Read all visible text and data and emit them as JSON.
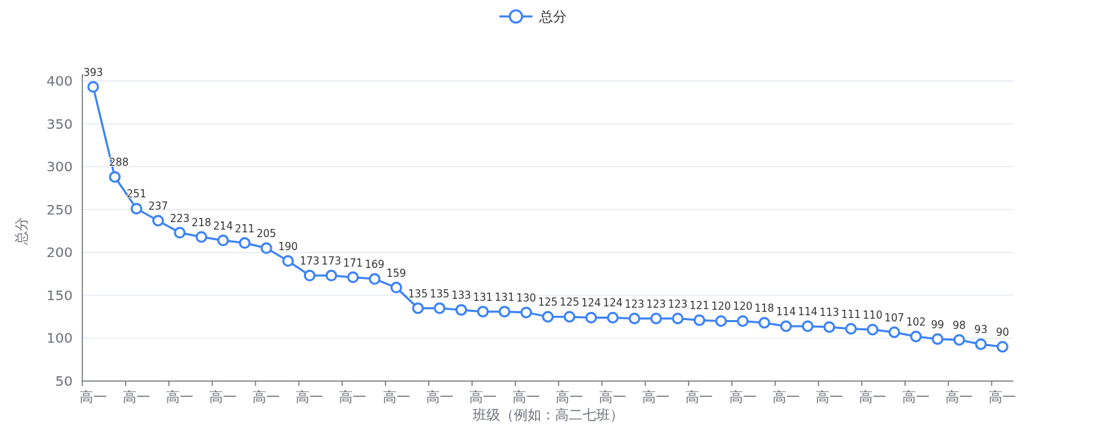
{
  "chart_data": {
    "type": "line",
    "xlabel": "班级（例如：高二七班）",
    "ylabel": "总分",
    "categories": [
      "高一",
      null,
      "高一",
      null,
      "高一",
      null,
      "高一",
      null,
      "高一",
      null,
      "高一",
      null,
      "高一",
      null,
      "高一",
      null,
      "高一",
      null,
      "高一",
      null,
      "高一",
      null,
      "高一",
      null,
      "高一",
      null,
      "高一",
      null,
      "高一",
      null,
      "高一",
      null,
      "高一",
      null,
      "高一",
      null,
      "高一",
      null,
      "高一",
      null,
      "高一",
      null,
      "高一"
    ],
    "series": [
      {
        "name": "总分",
        "color": "#3b82f6",
        "values": [
          393,
          288,
          251,
          237,
          223,
          218,
          214,
          211,
          205,
          190,
          173,
          173,
          171,
          169,
          159,
          135,
          135,
          133,
          131,
          131,
          130,
          125,
          125,
          124,
          124,
          123,
          123,
          123,
          121,
          120,
          120,
          118,
          114,
          114,
          113,
          111,
          110,
          107,
          102,
          99,
          98,
          93,
          90
        ]
      }
    ],
    "ylim": [
      50,
      400
    ],
    "yticks": [
      50,
      100,
      150,
      200,
      250,
      300,
      350,
      400
    ],
    "grid": "y",
    "legend": "top",
    "marker": "circle",
    "line_style": "solid",
    "data_labels": true
  }
}
